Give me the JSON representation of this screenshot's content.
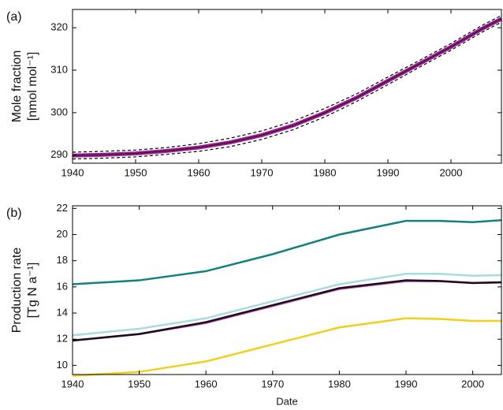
{
  "chart_data": [
    {
      "type": "line",
      "panel_label": "(a)",
      "ylabel": [
        "Mole fraction",
        "[nmol mol⁻¹]"
      ],
      "x": [
        1940,
        1945,
        1950,
        1955,
        1960,
        1965,
        1970,
        1975,
        1980,
        1985,
        1990,
        1995,
        2000,
        2005,
        2008
      ],
      "series": [
        {
          "color": "#000000",
          "linestyle": "dashed",
          "linewidth": 1.2,
          "values": [
            290.7,
            290.9,
            291.2,
            291.8,
            292.7,
            294.0,
            295.7,
            298.0,
            301.0,
            304.4,
            308.4,
            312.3,
            316.3,
            320.6,
            322.9
          ]
        },
        {
          "color": "#000000",
          "linestyle": "dashed",
          "linewidth": 1.2,
          "values": [
            289.1,
            289.3,
            289.6,
            290.2,
            290.9,
            292.0,
            293.7,
            296.0,
            299.0,
            302.6,
            306.6,
            310.7,
            314.7,
            319.0,
            321.3
          ]
        },
        {
          "color": "#9b1f8f",
          "linestyle": "solid",
          "linewidth": 5,
          "values": [
            289.9,
            290.1,
            290.4,
            291.0,
            291.8,
            293.0,
            294.7,
            297.0,
            300.0,
            303.5,
            307.5,
            311.5,
            315.5,
            319.8,
            322.1
          ]
        },
        {
          "color": "#2a0a2a",
          "linestyle": "solid",
          "linewidth": 1,
          "values": [
            289.9,
            290.1,
            290.4,
            291.0,
            291.8,
            293.0,
            294.7,
            297.0,
            300.0,
            303.5,
            307.5,
            311.5,
            315.5,
            319.8,
            322.1
          ]
        }
      ],
      "xlim": [
        1940,
        2008
      ],
      "ylim": [
        288.1,
        324.3
      ],
      "xticks": [
        1940,
        1950,
        1960,
        1970,
        1980,
        1990,
        2000
      ],
      "yticks": [
        290,
        300,
        310,
        320
      ]
    },
    {
      "type": "line",
      "panel_label": "(b)",
      "ylabel": [
        "Production rate",
        "[Tg N a⁻¹]"
      ],
      "xlabel": "Date",
      "x": [
        1940,
        1950,
        1960,
        1970,
        1980,
        1990,
        1995,
        2000,
        2004.3
      ],
      "series": [
        {
          "color": "#12807f",
          "linestyle": "solid",
          "linewidth": 2.5,
          "values": [
            16.2,
            16.5,
            17.2,
            18.5,
            20.0,
            21.05,
            21.05,
            20.95,
            21.1
          ]
        },
        {
          "color": "#a8dbe0",
          "linestyle": "solid",
          "linewidth": 2.5,
          "values": [
            12.3,
            12.8,
            13.6,
            14.9,
            16.2,
            17.0,
            17.0,
            16.85,
            16.9
          ]
        },
        {
          "color": "#c04cc0",
          "linestyle": "solid",
          "linewidth": 1.2,
          "values": [
            11.85,
            12.35,
            13.2,
            14.5,
            15.8,
            16.4,
            16.4,
            16.25,
            16.3
          ]
        },
        {
          "color": "#1c0b1c",
          "linestyle": "solid",
          "linewidth": 2.5,
          "values": [
            11.9,
            12.4,
            13.3,
            14.6,
            15.9,
            16.5,
            16.45,
            16.3,
            16.35
          ]
        },
        {
          "color": "#f2cf1a",
          "linestyle": "solid",
          "linewidth": 2.5,
          "values": [
            9.2,
            9.5,
            10.3,
            11.6,
            12.9,
            13.6,
            13.55,
            13.4,
            13.4
          ]
        }
      ],
      "xlim": [
        1940,
        2004.3
      ],
      "ylim": [
        9.3,
        22.2
      ],
      "xticks": [
        1940,
        1950,
        1960,
        1970,
        1980,
        1990,
        2000
      ],
      "yticks": [
        10,
        12,
        14,
        16,
        18,
        20,
        22
      ]
    }
  ]
}
